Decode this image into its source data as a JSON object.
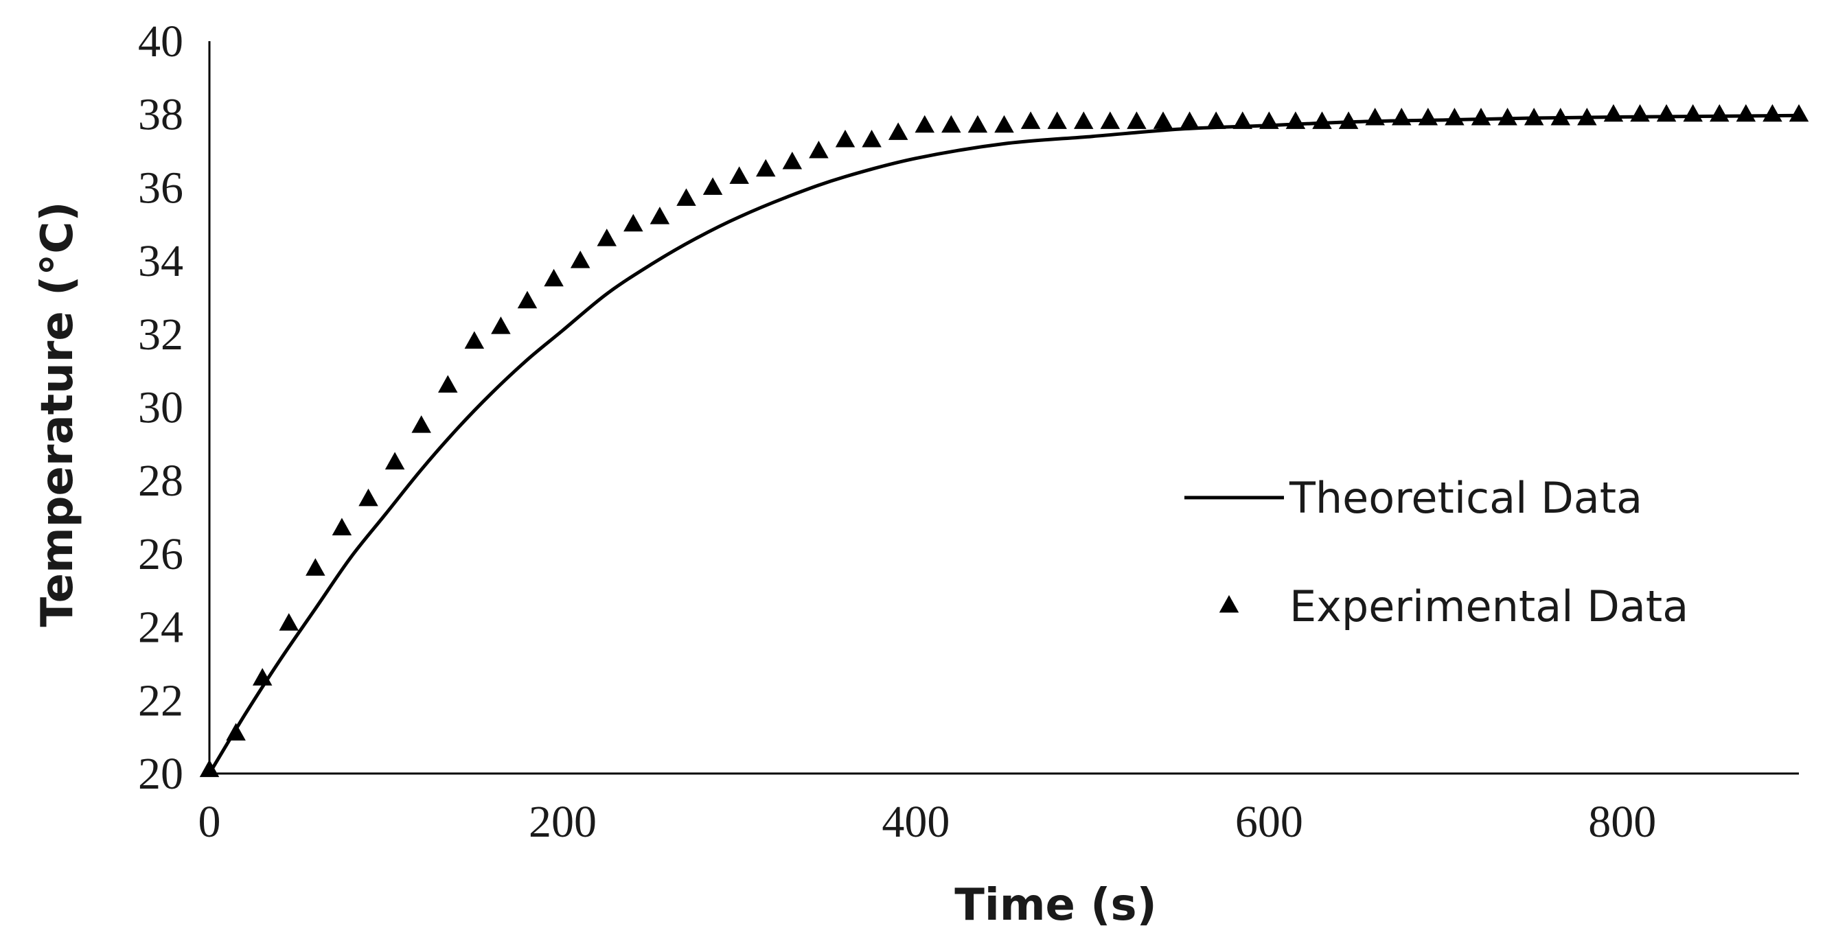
{
  "chart_data": {
    "type": "line",
    "title": "",
    "xlabel": "Time (s)",
    "ylabel": "Temperature (°C)",
    "xlim": [
      0,
      900
    ],
    "ylim": [
      20,
      40
    ],
    "x_ticks": [
      0,
      200,
      400,
      600,
      800
    ],
    "y_ticks": [
      20,
      22,
      24,
      26,
      28,
      30,
      32,
      34,
      36,
      38,
      40
    ],
    "x_tick_labels": [
      "0",
      "200",
      "400",
      "600",
      "800"
    ],
    "y_tick_labels": [
      "20",
      "22",
      "24",
      "26",
      "28",
      "30",
      "32",
      "34",
      "36",
      "38",
      "40"
    ],
    "grid": false,
    "legend_position": "center-right",
    "colors": {
      "theoretical": "#000000",
      "experimental": "#000000",
      "axis": "#000000"
    },
    "series": [
      {
        "name": "Theoretical Data",
        "style": "line",
        "x": [
          0,
          20,
          40,
          60,
          80,
          100,
          120,
          140,
          160,
          180,
          200,
          225,
          250,
          275,
          300,
          330,
          360,
          400,
          450,
          500,
          550,
          600,
          650,
          700,
          750,
          800,
          850,
          900
        ],
        "values": [
          20.0,
          21.6,
          23.1,
          24.5,
          25.9,
          27.1,
          28.3,
          29.4,
          30.4,
          31.3,
          32.1,
          33.1,
          33.9,
          34.6,
          35.2,
          35.8,
          36.3,
          36.8,
          37.2,
          37.4,
          37.6,
          37.7,
          37.8,
          37.85,
          37.9,
          37.93,
          37.95,
          37.97
        ]
      },
      {
        "name": "Experimental Data",
        "style": "triangle-markers",
        "x": [
          0,
          15,
          30,
          45,
          60,
          75,
          90,
          105,
          120,
          135,
          150,
          165,
          180,
          195,
          210,
          225,
          240,
          255,
          270,
          285,
          300,
          315,
          330,
          345,
          360,
          375,
          390,
          405,
          420,
          435,
          450,
          465,
          480,
          495,
          510,
          525,
          540,
          555,
          570,
          585,
          600,
          615,
          630,
          645,
          660,
          675,
          690,
          705,
          720,
          735,
          750,
          765,
          780,
          795,
          810,
          825,
          840,
          855,
          870,
          885,
          900
        ],
        "values": [
          20.1,
          21.1,
          22.6,
          24.1,
          25.6,
          26.7,
          27.5,
          28.5,
          29.5,
          30.6,
          31.8,
          32.2,
          32.9,
          33.5,
          34.0,
          34.6,
          35.0,
          35.2,
          35.7,
          36.0,
          36.3,
          36.5,
          36.7,
          37.0,
          37.3,
          37.3,
          37.5,
          37.7,
          37.7,
          37.7,
          37.7,
          37.8,
          37.8,
          37.8,
          37.8,
          37.8,
          37.8,
          37.8,
          37.8,
          37.8,
          37.8,
          37.8,
          37.8,
          37.8,
          37.9,
          37.9,
          37.9,
          37.9,
          37.9,
          37.9,
          37.9,
          37.9,
          37.9,
          38.0,
          38.0,
          38.0,
          38.0,
          38.0,
          38.0,
          38.0,
          38.0
        ]
      }
    ]
  }
}
